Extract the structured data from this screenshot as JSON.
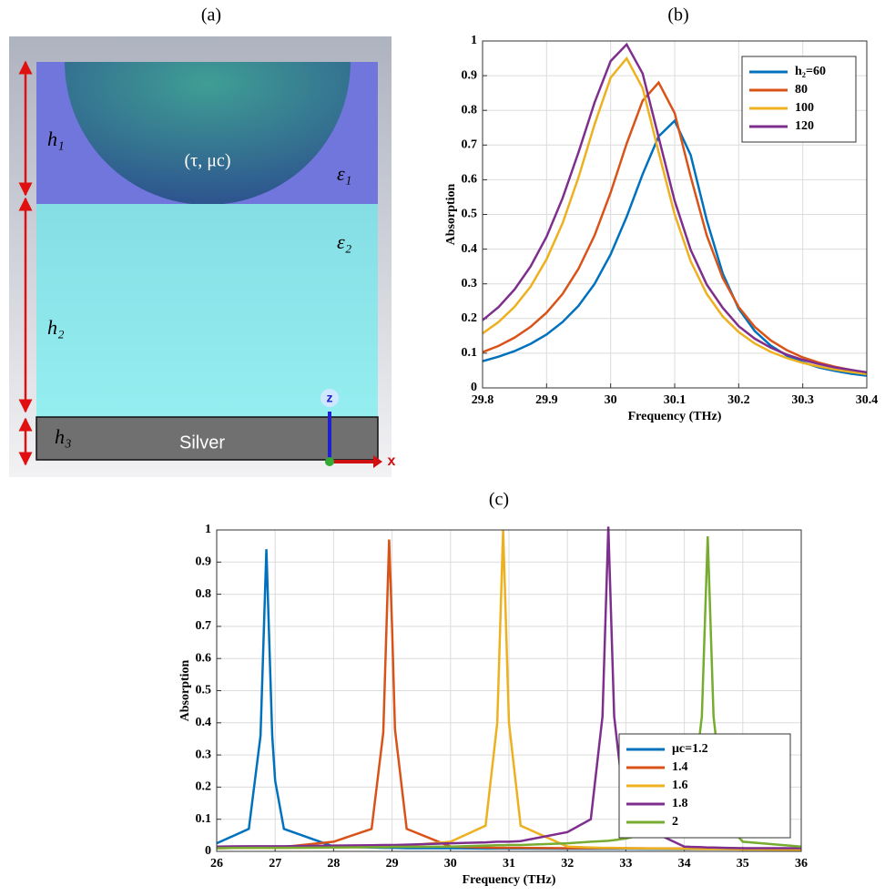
{
  "panel_labels": [
    "(a)",
    "(b)",
    "(c)"
  ],
  "diagram": {
    "h1": "h₁",
    "h2": "h₂",
    "h3": "h₃",
    "sphere": "(τ, μc)",
    "eps1": "ε₁",
    "eps2": "ε₂",
    "substrate": "Silver",
    "axis_z": "z",
    "axis_x": "x"
  },
  "chart_data": [
    {
      "type": "line",
      "xlabel": "Frequency (THz)",
      "ylabel": "Absorption",
      "x": [
        29.8,
        29.825,
        29.85,
        29.875,
        29.9,
        29.925,
        29.95,
        29.975,
        30,
        30.025,
        30.05,
        30.075,
        30.1,
        30.125,
        30.15,
        30.175,
        30.2,
        30.225,
        30.25,
        30.275,
        30.3,
        30.325,
        30.35,
        30.375,
        30.4
      ],
      "series": [
        {
          "name": "h₂=60",
          "color": "#0072bd",
          "values": [
            0.077,
            0.09,
            0.106,
            0.127,
            0.154,
            0.19,
            0.237,
            0.3,
            0.385,
            0.493,
            0.616,
            0.725,
            0.77,
            0.671,
            0.484,
            0.33,
            0.228,
            0.164,
            0.122,
            0.093,
            0.074,
            0.059,
            0.049,
            0.041,
            0.035
          ]
        },
        {
          "name": "80",
          "color": "#d95319",
          "values": [
            0.103,
            0.121,
            0.145,
            0.176,
            0.217,
            0.271,
            0.344,
            0.44,
            0.563,
            0.704,
            0.828,
            0.88,
            0.792,
            0.609,
            0.44,
            0.317,
            0.233,
            0.176,
            0.137,
            0.109,
            0.088,
            0.073,
            0.061,
            0.052,
            0.044
          ]
        },
        {
          "name": "100",
          "color": "#edb120",
          "values": [
            0.157,
            0.19,
            0.234,
            0.292,
            0.371,
            0.475,
            0.608,
            0.76,
            0.894,
            0.95,
            0.864,
            0.679,
            0.5,
            0.365,
            0.271,
            0.206,
            0.161,
            0.128,
            0.104,
            0.086,
            0.072,
            0.062,
            0.053,
            0.046,
            0.04
          ]
        },
        {
          "name": "120",
          "color": "#7e2f8e",
          "values": [
            0.195,
            0.233,
            0.284,
            0.35,
            0.436,
            0.547,
            0.68,
            0.823,
            0.942,
            0.99,
            0.906,
            0.722,
            0.539,
            0.398,
            0.298,
            0.231,
            0.178,
            0.142,
            0.116,
            0.096,
            0.081,
            0.069,
            0.059,
            0.052,
            0.045
          ]
        }
      ],
      "xlim": [
        29.8,
        30.4
      ],
      "xticks": [
        29.8,
        29.9,
        30,
        30.1,
        30.2,
        30.3,
        30.4
      ],
      "ylim": [
        0,
        1
      ],
      "yticks": [
        0,
        0.1,
        0.2,
        0.3,
        0.4,
        0.5,
        0.6,
        0.7,
        0.8,
        0.9,
        1
      ],
      "grid": true,
      "legend": "upper-right"
    },
    {
      "type": "line",
      "xlabel": "Frequency (THz)",
      "ylabel": "Absorption",
      "x": [
        26,
        26.55,
        26.75,
        26.85,
        26.95,
        27,
        27.15,
        28,
        28.65,
        28.85,
        28.95,
        29,
        29.05,
        29.25,
        30,
        30.6,
        30.8,
        30.9,
        31,
        31.2,
        32,
        32.4,
        32.6,
        32.7,
        32.8,
        33,
        34,
        34.1,
        34.3,
        34.4,
        34.5,
        34.7,
        35,
        36
      ],
      "series": [
        {
          "name": "μc=1.2",
          "color": "#0072bd",
          "values": [
            0.025,
            0.07,
            0.36,
            0.94,
            0.36,
            0.22,
            0.07,
            0.015,
            0.012,
            0.011,
            0.011,
            0.011,
            0.011,
            0.01,
            0.01,
            0.009,
            0.009,
            0.009,
            0.009,
            0.009,
            0.008,
            0.008,
            0.008,
            0.008,
            0.008,
            0.008,
            0.007,
            0.007,
            0.007,
            0.007,
            0.007,
            0.007,
            0.006,
            0.006
          ]
        },
        {
          "name": "1.4",
          "color": "#d95319",
          "values": [
            0.01,
            0.011,
            0.012,
            0.012,
            0.013,
            0.013,
            0.014,
            0.03,
            0.07,
            0.37,
            0.97,
            0.7,
            0.38,
            0.07,
            0.015,
            0.012,
            0.011,
            0.011,
            0.011,
            0.011,
            0.01,
            0.01,
            0.01,
            0.01,
            0.01,
            0.01,
            0.009,
            0.009,
            0.009,
            0.009,
            0.009,
            0.009,
            0.008,
            0.008
          ]
        },
        {
          "name": "1.6",
          "color": "#edb120",
          "values": [
            0.01,
            0.011,
            0.011,
            0.011,
            0.011,
            0.011,
            0.011,
            0.012,
            0.014,
            0.015,
            0.015,
            0.016,
            0.016,
            0.018,
            0.03,
            0.08,
            0.4,
            1,
            0.4,
            0.08,
            0.015,
            0.012,
            0.011,
            0.011,
            0.011,
            0.01,
            0.008,
            0.008,
            0.007,
            0.007,
            0.007,
            0.007,
            0.006,
            0.005
          ]
        },
        {
          "name": "1.8",
          "color": "#7e2f8e",
          "values": [
            0.015,
            0.016,
            0.016,
            0.016,
            0.016,
            0.016,
            0.016,
            0.018,
            0.019,
            0.02,
            0.02,
            0.02,
            0.02,
            0.021,
            0.025,
            0.028,
            0.03,
            0.03,
            0.03,
            0.032,
            0.06,
            0.1,
            0.42,
            1.01,
            0.42,
            0.1,
            0.015,
            0.014,
            0.013,
            0.012,
            0.012,
            0.011,
            0.01,
            0.01
          ]
        },
        {
          "name": "2",
          "color": "#77ac30",
          "values": [
            0.01,
            0.011,
            0.011,
            0.011,
            0.011,
            0.011,
            0.011,
            0.012,
            0.013,
            0.013,
            0.013,
            0.014,
            0.014,
            0.014,
            0.015,
            0.018,
            0.019,
            0.019,
            0.02,
            0.02,
            0.025,
            0.03,
            0.032,
            0.033,
            0.035,
            0.04,
            0.08,
            0.11,
            0.42,
            0.98,
            0.42,
            0.09,
            0.03,
            0.015
          ]
        }
      ],
      "xlim": [
        26,
        36
      ],
      "xticks": [
        26,
        27,
        28,
        29,
        30,
        31,
        32,
        33,
        34,
        35,
        36
      ],
      "ylim": [
        0,
        1
      ],
      "yticks": [
        0,
        0.1,
        0.2,
        0.3,
        0.4,
        0.5,
        0.6,
        0.7,
        0.8,
        0.9,
        1
      ],
      "grid": true,
      "legend": "lower-right"
    }
  ]
}
